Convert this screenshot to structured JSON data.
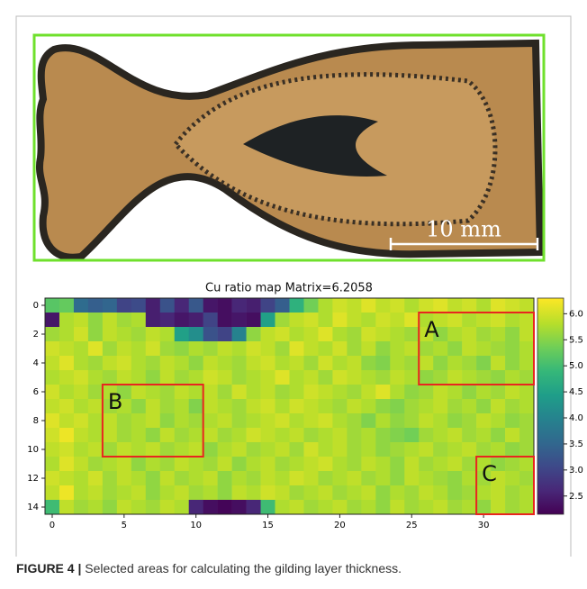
{
  "photo": {
    "scale_label": "10 mm"
  },
  "chart_data": {
    "type": "heatmap",
    "title": "Cu ratio map Matrix=6.2058",
    "xlim": [
      -0.5,
      33.5
    ],
    "ylim": [
      14.5,
      -0.5
    ],
    "xticks": [
      0,
      5,
      10,
      15,
      20,
      25,
      30
    ],
    "yticks": [
      0,
      2,
      4,
      6,
      8,
      10,
      12,
      14
    ],
    "zlim": [
      2.15,
      6.3
    ],
    "zticks": [
      {
        "value": 2.5,
        "label": "2.5"
      },
      {
        "value": 3,
        "label": "3.0"
      },
      {
        "value": 3.5,
        "label": "3.5"
      },
      {
        "value": 4,
        "label": "4.0"
      },
      {
        "value": 4.5,
        "label": "4.5"
      },
      {
        "value": 5,
        "label": "5.0"
      },
      {
        "value": 5.5,
        "label": "5.5"
      },
      {
        "value": 6,
        "label": "6.0"
      }
    ],
    "colormap": "viridis",
    "values": [
      [
        5.2,
        5.3,
        3.6,
        3.4,
        3.5,
        3.0,
        3.1,
        2.5,
        3.2,
        2.6,
        3.3,
        2.4,
        2.3,
        2.6,
        2.5,
        3.0,
        3.4,
        4.8,
        5.4,
        5.8,
        6.0,
        5.9,
        6.1,
        5.9,
        6.0,
        5.8,
        6.0,
        6.1,
        5.9,
        6.0,
        5.8,
        6.1,
        6.0,
        5.9
      ],
      [
        2.4,
        5.8,
        5.9,
        5.6,
        5.9,
        5.7,
        5.8,
        2.5,
        2.6,
        2.4,
        2.5,
        3.0,
        2.3,
        2.4,
        2.3,
        4.5,
        5.7,
        5.9,
        6.0,
        5.8,
        6.1,
        5.9,
        5.8,
        6.0,
        5.9,
        6.1,
        5.8,
        5.9,
        6.0,
        5.8,
        5.9,
        6.0,
        5.8,
        5.9
      ],
      [
        5.7,
        5.8,
        6.0,
        5.6,
        5.9,
        5.8,
        5.7,
        5.9,
        5.8,
        4.5,
        4.2,
        3.2,
        3.0,
        4.0,
        5.6,
        5.9,
        6.0,
        5.8,
        5.9,
        6.1,
        5.8,
        5.7,
        6.0,
        5.9,
        5.8,
        5.7,
        5.9,
        5.6,
        5.8,
        5.9,
        5.7,
        5.8,
        5.6,
        5.9
      ],
      [
        6.0,
        5.9,
        5.8,
        6.1,
        5.7,
        5.9,
        5.8,
        6.0,
        5.7,
        5.6,
        5.8,
        5.7,
        5.9,
        5.8,
        6.0,
        5.9,
        5.7,
        6.1,
        5.9,
        5.8,
        6.0,
        5.7,
        5.9,
        5.6,
        5.8,
        5.9,
        5.7,
        5.8,
        5.6,
        5.9,
        5.8,
        5.7,
        5.6,
        5.8
      ],
      [
        5.9,
        6.1,
        5.8,
        5.7,
        5.9,
        6.0,
        5.8,
        5.7,
        5.9,
        5.8,
        5.6,
        5.9,
        5.8,
        5.7,
        5.9,
        6.0,
        5.8,
        5.9,
        5.7,
        6.0,
        5.8,
        5.9,
        5.6,
        5.5,
        5.8,
        5.7,
        5.9,
        5.6,
        5.8,
        5.7,
        5.5,
        5.9,
        5.6,
        5.8
      ],
      [
        5.8,
        5.9,
        6.0,
        5.8,
        5.7,
        5.9,
        5.8,
        5.6,
        5.9,
        5.7,
        5.8,
        6.0,
        5.9,
        5.7,
        5.8,
        5.9,
        6.1,
        5.8,
        5.9,
        5.7,
        6.0,
        5.9,
        5.8,
        5.7,
        5.9,
        5.8,
        5.6,
        5.7,
        5.9,
        5.8,
        5.7,
        5.6,
        5.8,
        5.7
      ],
      [
        6.0,
        5.8,
        5.9,
        5.7,
        5.8,
        5.6,
        5.9,
        5.8,
        5.7,
        5.9,
        5.8,
        5.9,
        5.7,
        6.0,
        5.8,
        5.9,
        5.7,
        5.8,
        6.0,
        5.9,
        5.8,
        5.7,
        5.9,
        6.1,
        5.8,
        5.6,
        5.7,
        5.9,
        5.8,
        5.6,
        5.8,
        5.7,
        5.9,
        5.8
      ],
      [
        5.9,
        6.0,
        5.8,
        5.9,
        5.7,
        5.8,
        5.6,
        5.9,
        5.7,
        5.8,
        5.5,
        5.9,
        5.8,
        5.7,
        5.9,
        6.0,
        5.8,
        6.0,
        5.9,
        5.8,
        5.7,
        5.9,
        5.8,
        5.6,
        5.5,
        5.7,
        5.8,
        5.9,
        5.7,
        5.8,
        5.6,
        5.9,
        5.7,
        5.8
      ],
      [
        6.1,
        5.9,
        6.0,
        5.8,
        5.9,
        5.7,
        5.8,
        5.9,
        5.6,
        5.8,
        5.7,
        5.8,
        5.9,
        5.7,
        5.8,
        5.9,
        6.0,
        5.8,
        5.9,
        6.0,
        5.8,
        5.7,
        5.5,
        5.8,
        5.6,
        5.7,
        5.9,
        5.8,
        5.6,
        5.7,
        5.9,
        5.8,
        5.6,
        5.7
      ],
      [
        6.0,
        6.2,
        5.9,
        5.8,
        5.9,
        5.7,
        5.8,
        5.6,
        5.9,
        5.7,
        5.8,
        5.9,
        5.7,
        5.8,
        6.0,
        5.9,
        5.8,
        5.9,
        5.7,
        5.8,
        5.9,
        5.7,
        5.8,
        5.6,
        5.5,
        5.4,
        5.7,
        5.8,
        5.9,
        5.7,
        5.8,
        5.6,
        5.9,
        5.7
      ],
      [
        5.9,
        6.0,
        5.8,
        5.9,
        5.7,
        5.9,
        5.8,
        5.9,
        5.7,
        5.8,
        5.9,
        5.6,
        5.8,
        5.9,
        5.7,
        5.8,
        5.9,
        5.7,
        6.0,
        5.8,
        5.9,
        5.7,
        5.8,
        5.6,
        5.7,
        5.8,
        5.9,
        5.7,
        5.8,
        5.9,
        5.7,
        5.8,
        5.6,
        5.7
      ],
      [
        5.8,
        6.1,
        5.9,
        5.7,
        5.8,
        5.9,
        5.6,
        5.8,
        5.7,
        5.9,
        5.8,
        5.7,
        5.9,
        5.6,
        5.8,
        5.9,
        5.7,
        5.8,
        5.9,
        6.0,
        5.8,
        5.7,
        5.9,
        5.8,
        5.6,
        5.9,
        5.7,
        5.8,
        5.9,
        5.7,
        5.8,
        5.6,
        5.7,
        5.8
      ],
      [
        6.0,
        5.9,
        5.8,
        6.0,
        5.7,
        5.9,
        5.8,
        5.6,
        5.9,
        5.7,
        5.8,
        5.9,
        5.6,
        5.8,
        5.7,
        5.9,
        5.8,
        6.0,
        5.9,
        5.7,
        5.8,
        5.9,
        5.7,
        5.8,
        5.6,
        5.9,
        5.8,
        5.7,
        5.6,
        5.8,
        5.7,
        5.9,
        5.8,
        5.7
      ],
      [
        5.9,
        6.2,
        5.8,
        5.9,
        5.7,
        5.8,
        5.9,
        5.6,
        5.8,
        5.9,
        5.7,
        5.8,
        5.6,
        5.9,
        5.8,
        6.0,
        5.9,
        5.7,
        5.8,
        5.9,
        5.7,
        5.8,
        5.9,
        5.6,
        5.8,
        5.7,
        5.9,
        5.8,
        5.6,
        5.7,
        5.8,
        5.9,
        5.7,
        5.8
      ],
      [
        5.0,
        5.9,
        5.7,
        5.8,
        5.6,
        5.9,
        5.8,
        5.7,
        5.9,
        5.8,
        2.6,
        2.3,
        2.2,
        2.3,
        2.6,
        5.0,
        5.8,
        5.9,
        5.7,
        5.8,
        5.9,
        5.7,
        5.8,
        5.6,
        5.9,
        5.7,
        5.8,
        5.9,
        5.7,
        5.8,
        5.6,
        5.9,
        5.7,
        5.8
      ]
    ],
    "regions": [
      {
        "label": "A",
        "x": [
          25.5,
          33.5
        ],
        "y": [
          0.5,
          5.5
        ]
      },
      {
        "label": "B",
        "x": [
          3.5,
          10.5
        ],
        "y": [
          5.5,
          10.5
        ]
      },
      {
        "label": "C",
        "x": [
          29.5,
          33.5
        ],
        "y": [
          10.5,
          14.5
        ]
      }
    ],
    "region_color": "#e8251f"
  },
  "caption": {
    "label": "FIGURE 4 |",
    "text": "Selected areas for calculating the gilding layer thickness."
  }
}
